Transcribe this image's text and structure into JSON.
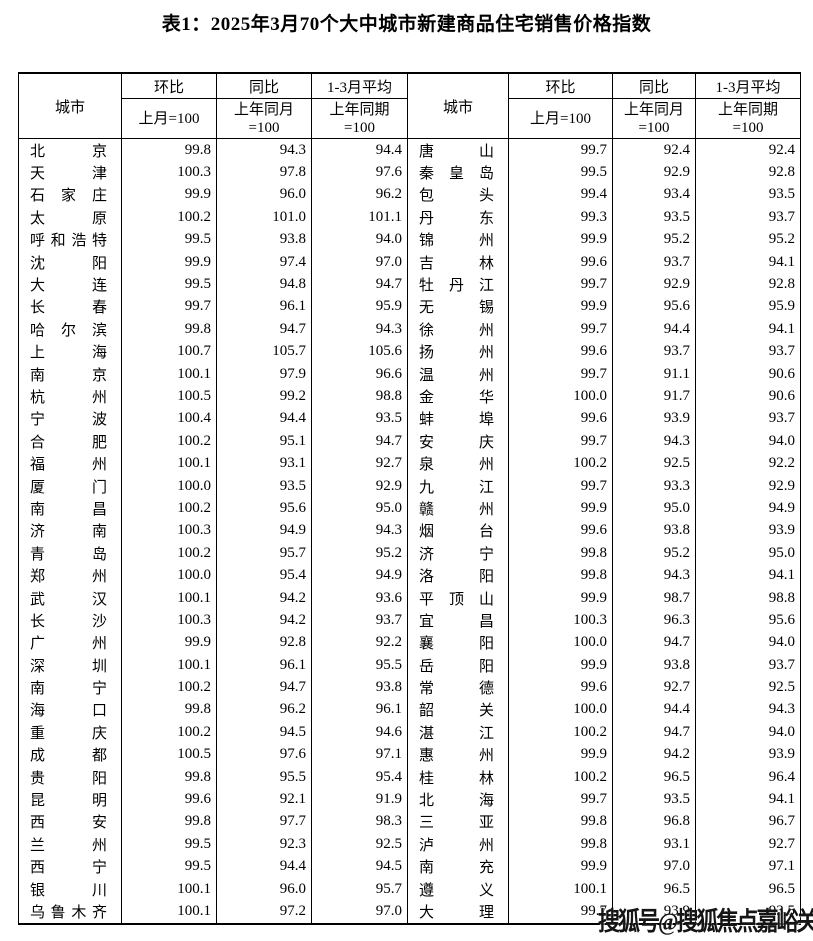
{
  "title": "表1：2025年3月70个大中城市新建商品住宅销售价格指数",
  "header": {
    "city": "城市",
    "cols": [
      {
        "top": "环比",
        "line1": "上月=100",
        "line2": ""
      },
      {
        "top": "同比",
        "line1": "上年同月",
        "line2": "=100"
      },
      {
        "top": "1-3月平均",
        "line1": "上年同期",
        "line2": "=100"
      }
    ]
  },
  "left_rows": [
    {
      "city": "北京",
      "mom": "99.8",
      "yoy": "94.3",
      "avg": "94.4"
    },
    {
      "city": "天津",
      "mom": "100.3",
      "yoy": "97.8",
      "avg": "97.6"
    },
    {
      "city": "石家庄",
      "mom": "99.9",
      "yoy": "96.0",
      "avg": "96.2"
    },
    {
      "city": "太原",
      "mom": "100.2",
      "yoy": "101.0",
      "avg": "101.1"
    },
    {
      "city": "呼和浩特",
      "mom": "99.5",
      "yoy": "93.8",
      "avg": "94.0"
    },
    {
      "city": "沈阳",
      "mom": "99.9",
      "yoy": "97.4",
      "avg": "97.0"
    },
    {
      "city": "大连",
      "mom": "99.5",
      "yoy": "94.8",
      "avg": "94.7"
    },
    {
      "city": "长春",
      "mom": "99.7",
      "yoy": "96.1",
      "avg": "95.9"
    },
    {
      "city": "哈尔滨",
      "mom": "99.8",
      "yoy": "94.7",
      "avg": "94.3"
    },
    {
      "city": "上海",
      "mom": "100.7",
      "yoy": "105.7",
      "avg": "105.6"
    },
    {
      "city": "南京",
      "mom": "100.1",
      "yoy": "97.9",
      "avg": "96.6"
    },
    {
      "city": "杭州",
      "mom": "100.5",
      "yoy": "99.2",
      "avg": "98.8"
    },
    {
      "city": "宁波",
      "mom": "100.4",
      "yoy": "94.4",
      "avg": "93.5"
    },
    {
      "city": "合肥",
      "mom": "100.2",
      "yoy": "95.1",
      "avg": "94.7"
    },
    {
      "city": "福州",
      "mom": "100.1",
      "yoy": "93.1",
      "avg": "92.7"
    },
    {
      "city": "厦门",
      "mom": "100.0",
      "yoy": "93.5",
      "avg": "92.9"
    },
    {
      "city": "南昌",
      "mom": "100.2",
      "yoy": "95.6",
      "avg": "95.0"
    },
    {
      "city": "济南",
      "mom": "100.3",
      "yoy": "94.9",
      "avg": "94.3"
    },
    {
      "city": "青岛",
      "mom": "100.2",
      "yoy": "95.7",
      "avg": "95.2"
    },
    {
      "city": "郑州",
      "mom": "100.0",
      "yoy": "95.4",
      "avg": "94.9"
    },
    {
      "city": "武汉",
      "mom": "100.1",
      "yoy": "94.2",
      "avg": "93.6"
    },
    {
      "city": "长沙",
      "mom": "100.3",
      "yoy": "94.2",
      "avg": "93.7"
    },
    {
      "city": "广州",
      "mom": "99.9",
      "yoy": "92.8",
      "avg": "92.2"
    },
    {
      "city": "深圳",
      "mom": "100.1",
      "yoy": "96.1",
      "avg": "95.5"
    },
    {
      "city": "南宁",
      "mom": "100.2",
      "yoy": "94.7",
      "avg": "93.8"
    },
    {
      "city": "海口",
      "mom": "99.8",
      "yoy": "96.2",
      "avg": "96.1"
    },
    {
      "city": "重庆",
      "mom": "100.2",
      "yoy": "94.5",
      "avg": "94.6"
    },
    {
      "city": "成都",
      "mom": "100.5",
      "yoy": "97.6",
      "avg": "97.1"
    },
    {
      "city": "贵阳",
      "mom": "99.8",
      "yoy": "95.5",
      "avg": "95.4"
    },
    {
      "city": "昆明",
      "mom": "99.6",
      "yoy": "92.1",
      "avg": "91.9"
    },
    {
      "city": "西安",
      "mom": "99.8",
      "yoy": "97.7",
      "avg": "98.3"
    },
    {
      "city": "兰州",
      "mom": "99.5",
      "yoy": "92.3",
      "avg": "92.5"
    },
    {
      "city": "西宁",
      "mom": "99.5",
      "yoy": "94.4",
      "avg": "94.5"
    },
    {
      "city": "银川",
      "mom": "100.1",
      "yoy": "96.0",
      "avg": "95.7"
    },
    {
      "city": "乌鲁木齐",
      "mom": "100.1",
      "yoy": "97.2",
      "avg": "97.0"
    }
  ],
  "right_rows": [
    {
      "city": "唐山",
      "mom": "99.7",
      "yoy": "92.4",
      "avg": "92.4"
    },
    {
      "city": "秦皇岛",
      "mom": "99.5",
      "yoy": "92.9",
      "avg": "92.8"
    },
    {
      "city": "包头",
      "mom": "99.4",
      "yoy": "93.4",
      "avg": "93.5"
    },
    {
      "city": "丹东",
      "mom": "99.3",
      "yoy": "93.5",
      "avg": "93.7"
    },
    {
      "city": "锦州",
      "mom": "99.9",
      "yoy": "95.2",
      "avg": "95.2"
    },
    {
      "city": "吉林",
      "mom": "99.6",
      "yoy": "93.7",
      "avg": "94.1"
    },
    {
      "city": "牡丹江",
      "mom": "99.7",
      "yoy": "92.9",
      "avg": "92.8"
    },
    {
      "city": "无锡",
      "mom": "99.9",
      "yoy": "95.6",
      "avg": "95.9"
    },
    {
      "city": "徐州",
      "mom": "99.7",
      "yoy": "94.4",
      "avg": "94.1"
    },
    {
      "city": "扬州",
      "mom": "99.6",
      "yoy": "93.7",
      "avg": "93.7"
    },
    {
      "city": "温州",
      "mom": "99.7",
      "yoy": "91.1",
      "avg": "90.6"
    },
    {
      "city": "金华",
      "mom": "100.0",
      "yoy": "91.7",
      "avg": "90.6"
    },
    {
      "city": "蚌埠",
      "mom": "99.6",
      "yoy": "93.9",
      "avg": "93.7"
    },
    {
      "city": "安庆",
      "mom": "99.7",
      "yoy": "94.3",
      "avg": "94.0"
    },
    {
      "city": "泉州",
      "mom": "100.2",
      "yoy": "92.5",
      "avg": "92.2"
    },
    {
      "city": "九江",
      "mom": "99.7",
      "yoy": "93.3",
      "avg": "92.9"
    },
    {
      "city": "赣州",
      "mom": "99.9",
      "yoy": "95.0",
      "avg": "94.9"
    },
    {
      "city": "烟台",
      "mom": "99.6",
      "yoy": "93.8",
      "avg": "93.9"
    },
    {
      "city": "济宁",
      "mom": "99.8",
      "yoy": "95.2",
      "avg": "95.0"
    },
    {
      "city": "洛阳",
      "mom": "99.8",
      "yoy": "94.3",
      "avg": "94.1"
    },
    {
      "city": "平顶山",
      "mom": "99.9",
      "yoy": "98.7",
      "avg": "98.8"
    },
    {
      "city": "宜昌",
      "mom": "100.3",
      "yoy": "96.3",
      "avg": "95.6"
    },
    {
      "city": "襄阳",
      "mom": "100.0",
      "yoy": "94.7",
      "avg": "94.0"
    },
    {
      "city": "岳阳",
      "mom": "99.9",
      "yoy": "93.8",
      "avg": "93.7"
    },
    {
      "city": "常德",
      "mom": "99.6",
      "yoy": "92.7",
      "avg": "92.5"
    },
    {
      "city": "韶关",
      "mom": "100.0",
      "yoy": "94.4",
      "avg": "94.3"
    },
    {
      "city": "湛江",
      "mom": "100.2",
      "yoy": "94.7",
      "avg": "94.0"
    },
    {
      "city": "惠州",
      "mom": "99.9",
      "yoy": "94.2",
      "avg": "93.9"
    },
    {
      "city": "桂林",
      "mom": "100.2",
      "yoy": "96.5",
      "avg": "96.4"
    },
    {
      "city": "北海",
      "mom": "99.7",
      "yoy": "93.5",
      "avg": "94.1"
    },
    {
      "city": "三亚",
      "mom": "99.8",
      "yoy": "96.8",
      "avg": "96.7"
    },
    {
      "city": "泸州",
      "mom": "99.8",
      "yoy": "93.1",
      "avg": "92.7"
    },
    {
      "city": "南充",
      "mom": "99.9",
      "yoy": "97.0",
      "avg": "97.1"
    },
    {
      "city": "遵义",
      "mom": "100.1",
      "yoy": "96.5",
      "avg": "96.5"
    },
    {
      "city": "大理",
      "mom": "99.7",
      "yoy": "93.9",
      "avg": "93.5"
    }
  ],
  "watermark": "搜狐号@搜狐焦点嘉峪关站"
}
